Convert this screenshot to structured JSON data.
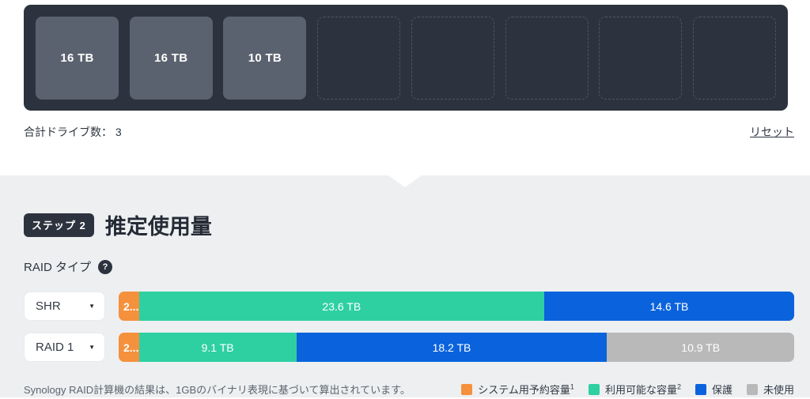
{
  "colors": {
    "panel_dark": "#2d333e",
    "tile_gray": "#5b626f",
    "section_bg": "#edeff1",
    "reserved_orange": "#f5913d",
    "available_green": "#2ed0a2",
    "protection_blue": "#0a63dc",
    "unused_gray": "#b9b9b9"
  },
  "drive_panel": {
    "slots": [
      {
        "label": "16 TB",
        "filled": true
      },
      {
        "label": "16 TB",
        "filled": true
      },
      {
        "label": "10 TB",
        "filled": true
      },
      {
        "label": "",
        "filled": false
      },
      {
        "label": "",
        "filled": false
      },
      {
        "label": "",
        "filled": false
      },
      {
        "label": "",
        "filled": false
      },
      {
        "label": "",
        "filled": false
      }
    ],
    "total_label": "合計ドライブ数：",
    "total_value": "3",
    "reset_label": "リセット"
  },
  "step_section": {
    "badge": "ステップ 2",
    "title": "推定使用量",
    "raid_type_label": "RAID タイプ",
    "help_glyph": "?"
  },
  "chart_data": {
    "type": "bar",
    "stacked": true,
    "orientation": "horizontal",
    "unit": "TB",
    "categories": [
      "SHR",
      "RAID 1"
    ],
    "series_names": [
      "システム用予約容量",
      "利用可能な容量",
      "保護",
      "未使用"
    ],
    "rows": [
      {
        "raid_type": "SHR",
        "segments": [
          {
            "series": "システム用予約容量",
            "label": "2...",
            "percent": 3.0,
            "color": "#f5913d"
          },
          {
            "series": "利用可能な容量",
            "label": "23.6 TB",
            "value": 23.6,
            "percent": 60.0,
            "color": "#2ed0a2"
          },
          {
            "series": "保護",
            "label": "14.6 TB",
            "value": 14.6,
            "percent": 37.0,
            "color": "#0a63dc"
          }
        ]
      },
      {
        "raid_type": "RAID 1",
        "segments": [
          {
            "series": "システム用予約容量",
            "label": "2...",
            "percent": 3.0,
            "color": "#f5913d"
          },
          {
            "series": "利用可能な容量",
            "label": "9.1 TB",
            "value": 9.1,
            "percent": 23.3,
            "color": "#2ed0a2"
          },
          {
            "series": "保護",
            "label": "18.2 TB",
            "value": 18.2,
            "percent": 46.0,
            "color": "#0a63dc"
          },
          {
            "series": "未使用",
            "label": "10.9 TB",
            "value": 10.9,
            "percent": 27.7,
            "color": "#b9b9b9"
          }
        ]
      }
    ]
  },
  "legend": {
    "items": [
      {
        "label": "システム用予約容量",
        "sup": "1",
        "color": "#f5913d"
      },
      {
        "label": "利用可能な容量",
        "sup": "2",
        "color": "#2ed0a2"
      },
      {
        "label": "保護",
        "sup": "",
        "color": "#0a63dc"
      },
      {
        "label": "未使用",
        "sup": "",
        "color": "#b9b9b9"
      }
    ]
  },
  "footnote": "Synology RAID計算機の結果は、1GBのバイナリ表現に基づいて算出されています。"
}
